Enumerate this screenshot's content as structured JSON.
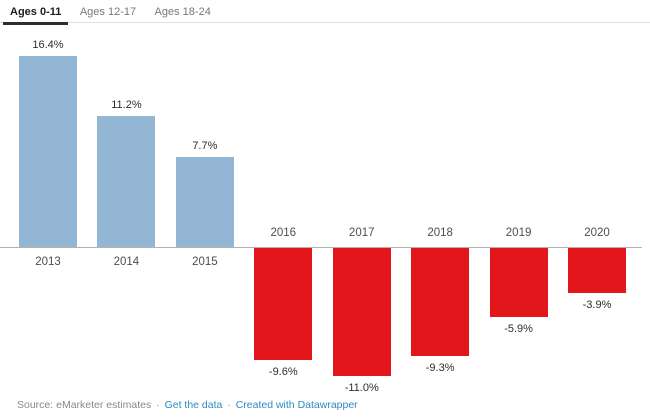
{
  "tabs": [
    {
      "label": "Ages 0-11",
      "active": true
    },
    {
      "label": "Ages 12-17",
      "active": false
    },
    {
      "label": "Ages 18-24",
      "active": false
    }
  ],
  "chart_data": {
    "type": "bar",
    "title": "",
    "categories": [
      "2013",
      "2014",
      "2015",
      "2016",
      "2017",
      "2018",
      "2019",
      "2020"
    ],
    "values": [
      16.4,
      11.2,
      7.7,
      -9.6,
      -11.0,
      -9.3,
      -5.9,
      -3.9
    ],
    "value_labels": [
      "16.4%",
      "11.2%",
      "7.7%",
      "-9.6%",
      "-11.0%",
      "-9.3%",
      "-5.9%",
      "-3.9%"
    ],
    "unit": "%",
    "ylim": [
      -12,
      17
    ],
    "grid": false,
    "legend": false,
    "layout_note": "single horizontal zero axis; positive bars above axis in blue with year labels below axis, negative bars below axis in red with year labels above axis"
  },
  "colors": {
    "positive_bar": "#92b6d4",
    "negative_bar": "#e2161b",
    "link": "#2e8bc0",
    "active_tab_underline": "#2e2e2e"
  },
  "footer": {
    "source_text": "Source: eMarketer estimates",
    "separator": "·",
    "links": [
      {
        "label": "Get the data"
      },
      {
        "label": "Created with Datawrapper"
      }
    ]
  }
}
